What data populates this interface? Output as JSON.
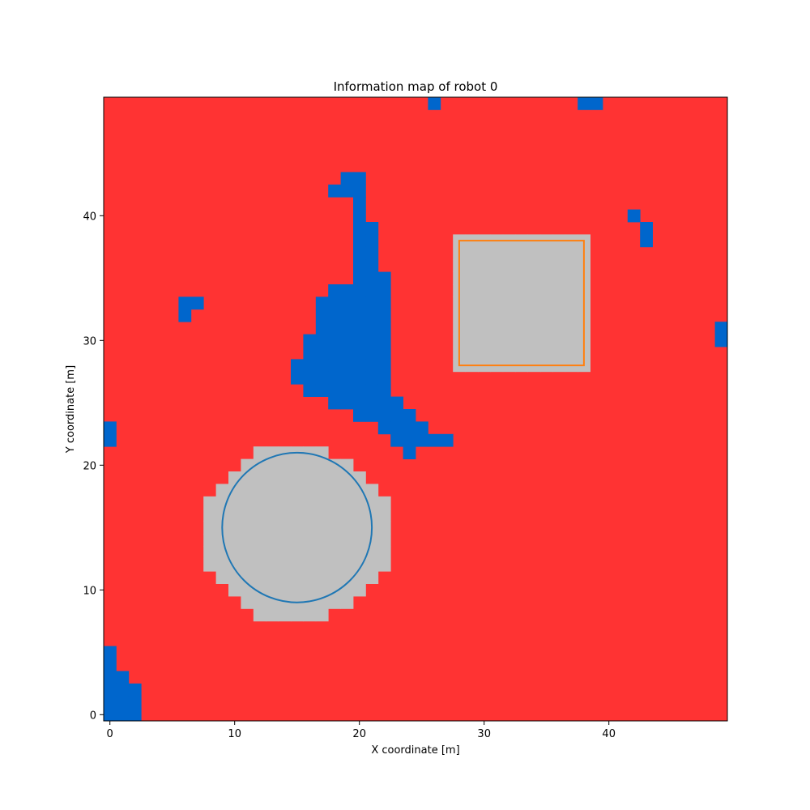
{
  "chart_data": {
    "type": "heatmap",
    "title": "Information map of robot 0",
    "xlabel": "X coordinate [m]",
    "ylabel": "Y coordinate [m]",
    "xlim": [
      -0.5,
      49.5
    ],
    "ylim": [
      -0.5,
      49.5
    ],
    "xticks": [
      0,
      10,
      20,
      30,
      40
    ],
    "yticks": [
      0,
      10,
      20,
      30,
      40
    ],
    "grid": false,
    "colors": {
      "background": "#ff3333",
      "explored": "#0066cc",
      "obstacle": "#c0c0c0",
      "circle_outline": "#1f77b4",
      "square_outline": "#ff7f0e"
    },
    "explored_cells": [
      [
        26,
        49
      ],
      [
        38,
        49
      ],
      [
        39,
        49
      ],
      [
        19,
        43
      ],
      [
        20,
        43
      ],
      [
        18,
        42
      ],
      [
        19,
        42
      ],
      [
        20,
        42
      ],
      [
        20,
        41
      ],
      [
        20,
        40
      ],
      [
        20,
        39
      ],
      [
        21,
        39
      ],
      [
        20,
        38
      ],
      [
        21,
        38
      ],
      [
        20,
        37
      ],
      [
        21,
        37
      ],
      [
        20,
        36
      ],
      [
        21,
        36
      ],
      [
        20,
        35
      ],
      [
        21,
        35
      ],
      [
        22,
        35
      ],
      [
        18,
        34
      ],
      [
        19,
        34
      ],
      [
        20,
        34
      ],
      [
        21,
        34
      ],
      [
        22,
        34
      ],
      [
        6,
        33
      ],
      [
        7,
        33
      ],
      [
        17,
        33
      ],
      [
        18,
        33
      ],
      [
        19,
        33
      ],
      [
        20,
        33
      ],
      [
        21,
        33
      ],
      [
        22,
        33
      ],
      [
        6,
        32
      ],
      [
        17,
        32
      ],
      [
        18,
        32
      ],
      [
        19,
        32
      ],
      [
        20,
        32
      ],
      [
        21,
        32
      ],
      [
        22,
        32
      ],
      [
        17,
        31
      ],
      [
        18,
        31
      ],
      [
        19,
        31
      ],
      [
        20,
        31
      ],
      [
        21,
        31
      ],
      [
        22,
        31
      ],
      [
        16,
        30
      ],
      [
        17,
        30
      ],
      [
        18,
        30
      ],
      [
        19,
        30
      ],
      [
        20,
        30
      ],
      [
        21,
        30
      ],
      [
        22,
        30
      ],
      [
        16,
        29
      ],
      [
        17,
        29
      ],
      [
        18,
        29
      ],
      [
        19,
        29
      ],
      [
        20,
        29
      ],
      [
        21,
        29
      ],
      [
        22,
        29
      ],
      [
        15,
        28
      ],
      [
        16,
        28
      ],
      [
        17,
        28
      ],
      [
        18,
        28
      ],
      [
        19,
        28
      ],
      [
        20,
        28
      ],
      [
        21,
        28
      ],
      [
        22,
        28
      ],
      [
        15,
        27
      ],
      [
        16,
        27
      ],
      [
        17,
        27
      ],
      [
        18,
        27
      ],
      [
        19,
        27
      ],
      [
        20,
        27
      ],
      [
        21,
        27
      ],
      [
        22,
        27
      ],
      [
        16,
        26
      ],
      [
        17,
        26
      ],
      [
        18,
        26
      ],
      [
        19,
        26
      ],
      [
        20,
        26
      ],
      [
        21,
        26
      ],
      [
        22,
        26
      ],
      [
        18,
        25
      ],
      [
        19,
        25
      ],
      [
        20,
        25
      ],
      [
        21,
        25
      ],
      [
        22,
        25
      ],
      [
        23,
        25
      ],
      [
        20,
        24
      ],
      [
        21,
        24
      ],
      [
        22,
        24
      ],
      [
        23,
        24
      ],
      [
        24,
        24
      ],
      [
        22,
        23
      ],
      [
        23,
        23
      ],
      [
        24,
        23
      ],
      [
        25,
        23
      ],
      [
        23,
        22
      ],
      [
        24,
        22
      ],
      [
        25,
        22
      ],
      [
        26,
        22
      ],
      [
        27,
        22
      ],
      [
        24,
        21
      ],
      [
        0,
        23
      ],
      [
        0,
        22
      ],
      [
        42,
        40
      ],
      [
        43,
        39
      ],
      [
        43,
        38
      ],
      [
        49,
        31
      ],
      [
        49,
        30
      ],
      [
        0,
        5
      ],
      [
        0,
        4
      ],
      [
        0,
        3
      ],
      [
        1,
        3
      ],
      [
        0,
        2
      ],
      [
        1,
        2
      ],
      [
        2,
        2
      ],
      [
        0,
        1
      ],
      [
        1,
        1
      ],
      [
        2,
        1
      ],
      [
        0,
        0
      ],
      [
        1,
        0
      ],
      [
        2,
        0
      ]
    ],
    "obstacle_cells_circle": [
      [
        12,
        21
      ],
      [
        13,
        21
      ],
      [
        14,
        21
      ],
      [
        15,
        21
      ],
      [
        16,
        21
      ],
      [
        17,
        21
      ],
      [
        11,
        20
      ],
      [
        12,
        20
      ],
      [
        13,
        20
      ],
      [
        14,
        20
      ],
      [
        15,
        20
      ],
      [
        16,
        20
      ],
      [
        17,
        20
      ],
      [
        18,
        20
      ],
      [
        19,
        20
      ],
      [
        10,
        19
      ],
      [
        11,
        19
      ],
      [
        12,
        19
      ],
      [
        13,
        19
      ],
      [
        14,
        19
      ],
      [
        15,
        19
      ],
      [
        16,
        19
      ],
      [
        17,
        19
      ],
      [
        18,
        19
      ],
      [
        19,
        19
      ],
      [
        20,
        19
      ],
      [
        9,
        18
      ],
      [
        10,
        18
      ],
      [
        11,
        18
      ],
      [
        12,
        18
      ],
      [
        13,
        18
      ],
      [
        14,
        18
      ],
      [
        15,
        18
      ],
      [
        16,
        18
      ],
      [
        17,
        18
      ],
      [
        18,
        18
      ],
      [
        19,
        18
      ],
      [
        20,
        18
      ],
      [
        21,
        18
      ],
      [
        8,
        17
      ],
      [
        9,
        17
      ],
      [
        10,
        17
      ],
      [
        11,
        17
      ],
      [
        12,
        17
      ],
      [
        13,
        17
      ],
      [
        14,
        17
      ],
      [
        15,
        17
      ],
      [
        16,
        17
      ],
      [
        17,
        17
      ],
      [
        18,
        17
      ],
      [
        19,
        17
      ],
      [
        20,
        17
      ],
      [
        21,
        17
      ],
      [
        22,
        17
      ],
      [
        8,
        16
      ],
      [
        9,
        16
      ],
      [
        10,
        16
      ],
      [
        11,
        16
      ],
      [
        12,
        16
      ],
      [
        13,
        16
      ],
      [
        14,
        16
      ],
      [
        15,
        16
      ],
      [
        16,
        16
      ],
      [
        17,
        16
      ],
      [
        18,
        16
      ],
      [
        19,
        16
      ],
      [
        20,
        16
      ],
      [
        21,
        16
      ],
      [
        22,
        16
      ],
      [
        8,
        15
      ],
      [
        9,
        15
      ],
      [
        10,
        15
      ],
      [
        11,
        15
      ],
      [
        12,
        15
      ],
      [
        13,
        15
      ],
      [
        14,
        15
      ],
      [
        15,
        15
      ],
      [
        16,
        15
      ],
      [
        17,
        15
      ],
      [
        18,
        15
      ],
      [
        19,
        15
      ],
      [
        20,
        15
      ],
      [
        21,
        15
      ],
      [
        22,
        15
      ],
      [
        8,
        14
      ],
      [
        9,
        14
      ],
      [
        10,
        14
      ],
      [
        11,
        14
      ],
      [
        12,
        14
      ],
      [
        13,
        14
      ],
      [
        14,
        14
      ],
      [
        15,
        14
      ],
      [
        16,
        14
      ],
      [
        17,
        14
      ],
      [
        18,
        14
      ],
      [
        19,
        14
      ],
      [
        20,
        14
      ],
      [
        21,
        14
      ],
      [
        22,
        14
      ],
      [
        8,
        13
      ],
      [
        9,
        13
      ],
      [
        10,
        13
      ],
      [
        11,
        13
      ],
      [
        12,
        13
      ],
      [
        13,
        13
      ],
      [
        14,
        13
      ],
      [
        15,
        13
      ],
      [
        16,
        13
      ],
      [
        17,
        13
      ],
      [
        18,
        13
      ],
      [
        19,
        13
      ],
      [
        20,
        13
      ],
      [
        21,
        13
      ],
      [
        22,
        13
      ],
      [
        8,
        12
      ],
      [
        9,
        12
      ],
      [
        10,
        12
      ],
      [
        11,
        12
      ],
      [
        12,
        12
      ],
      [
        13,
        12
      ],
      [
        14,
        12
      ],
      [
        15,
        12
      ],
      [
        16,
        12
      ],
      [
        17,
        12
      ],
      [
        18,
        12
      ],
      [
        19,
        12
      ],
      [
        20,
        12
      ],
      [
        21,
        12
      ],
      [
        22,
        12
      ],
      [
        9,
        11
      ],
      [
        10,
        11
      ],
      [
        11,
        11
      ],
      [
        12,
        11
      ],
      [
        13,
        11
      ],
      [
        14,
        11
      ],
      [
        15,
        11
      ],
      [
        16,
        11
      ],
      [
        17,
        11
      ],
      [
        18,
        11
      ],
      [
        19,
        11
      ],
      [
        20,
        11
      ],
      [
        21,
        11
      ],
      [
        10,
        10
      ],
      [
        11,
        10
      ],
      [
        12,
        10
      ],
      [
        13,
        10
      ],
      [
        14,
        10
      ],
      [
        15,
        10
      ],
      [
        16,
        10
      ],
      [
        17,
        10
      ],
      [
        18,
        10
      ],
      [
        19,
        10
      ],
      [
        20,
        10
      ],
      [
        11,
        9
      ],
      [
        12,
        9
      ],
      [
        13,
        9
      ],
      [
        14,
        9
      ],
      [
        15,
        9
      ],
      [
        16,
        9
      ],
      [
        17,
        9
      ],
      [
        18,
        9
      ],
      [
        19,
        9
      ],
      [
        12,
        8
      ],
      [
        13,
        8
      ],
      [
        14,
        8
      ],
      [
        15,
        8
      ],
      [
        16,
        8
      ],
      [
        17,
        8
      ]
    ],
    "obstacle_rect_cells": {
      "x": [
        28,
        38
      ],
      "y": [
        28,
        38
      ]
    },
    "circle_obstacle": {
      "center": [
        15,
        15
      ],
      "radius": 6
    },
    "square_obstacle": {
      "x0": 28,
      "y0": 28,
      "x1": 38,
      "y1": 38
    }
  }
}
